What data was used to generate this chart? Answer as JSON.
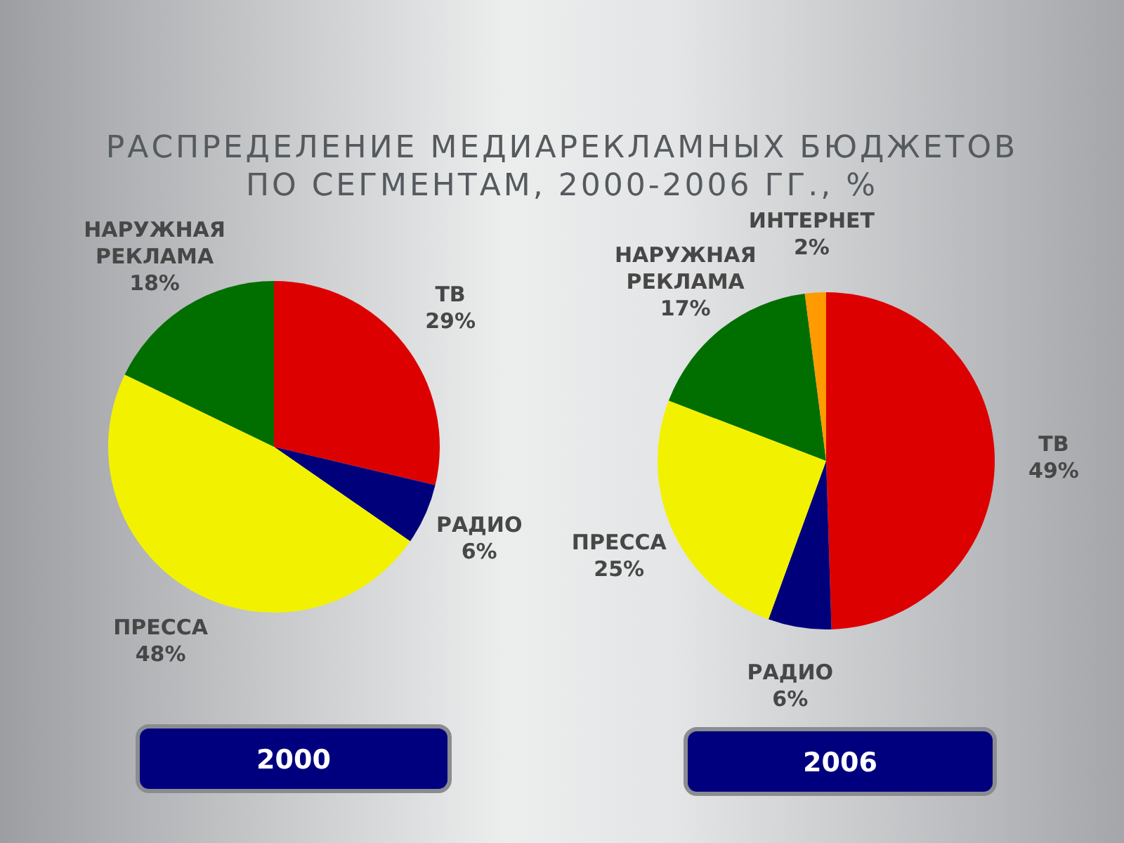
{
  "chart_data": [
    {
      "type": "pie",
      "title": "РАСПРЕДЕЛЕНИЕ МЕДИАРЕКЛАМНЫХ БЮДЖЕТОВ ПО СЕГМЕНТАМ, 2000-2006 ГГ., %",
      "subtitle": "2000",
      "categories": [
        "ТВ",
        "РАДИО",
        "ПРЕССА",
        "НАРУЖНАЯ РЕКЛАМА"
      ],
      "values": [
        29,
        6,
        48,
        18
      ],
      "value_labels": [
        "29%",
        "6%",
        "48%",
        "18%"
      ],
      "colors": [
        "#dd0000",
        "#00007a",
        "#f2f200",
        "#006f00"
      ]
    },
    {
      "type": "pie",
      "subtitle": "2006",
      "categories": [
        "ТВ",
        "РАДИО",
        "ПРЕССА",
        "НАРУЖНАЯ РЕКЛАМА",
        "ИНТЕРНЕТ"
      ],
      "values": [
        49,
        6,
        25,
        17,
        2
      ],
      "value_labels": [
        "49%",
        "6%",
        "25%",
        "17%",
        "2%"
      ],
      "colors": [
        "#dd0000",
        "#00007a",
        "#f2f200",
        "#006f00",
        "#ff9a00"
      ]
    }
  ]
}
